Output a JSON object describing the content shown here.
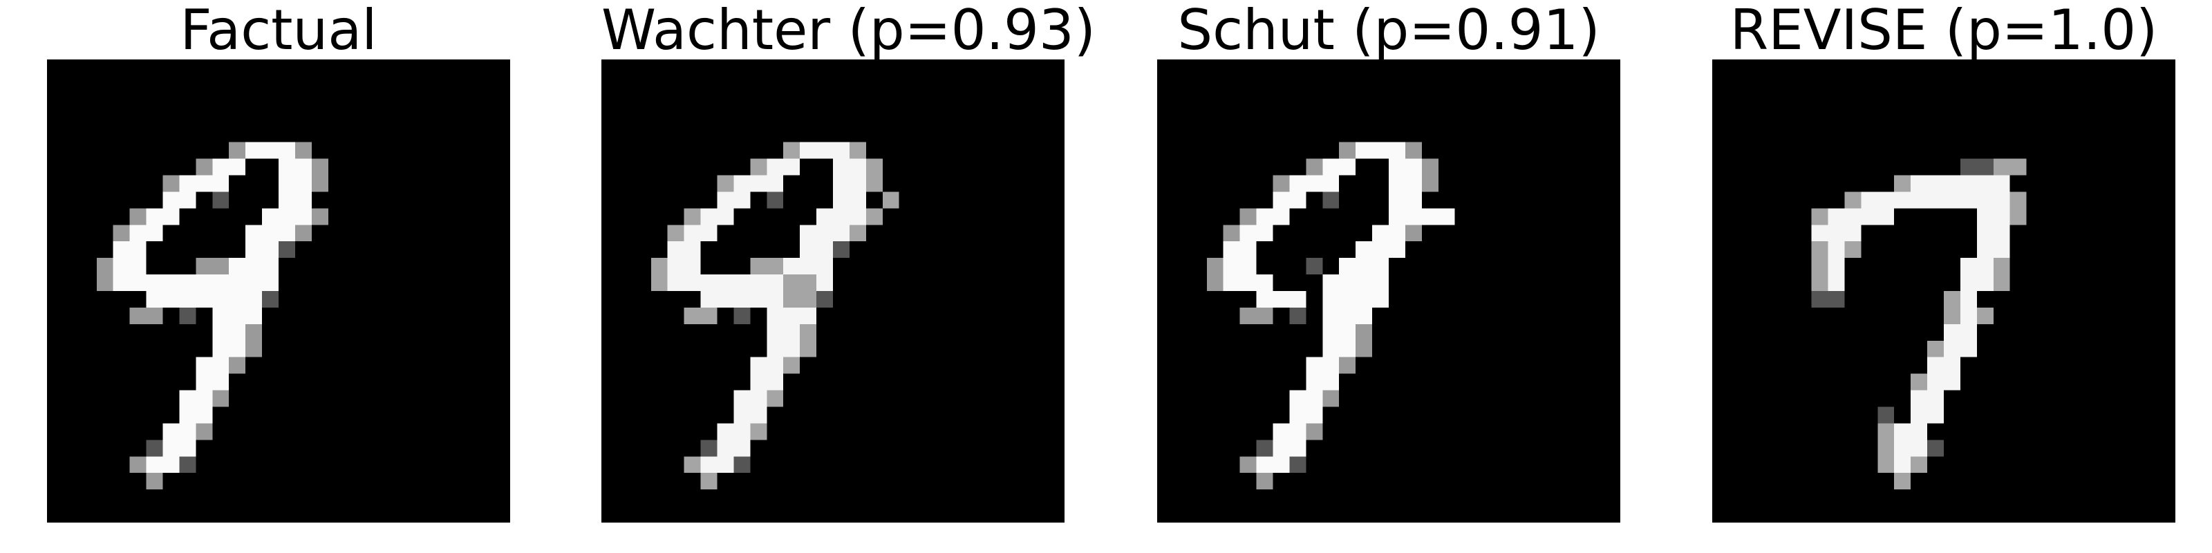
{
  "figure": {
    "panels": [
      {
        "id": "factual",
        "title": "Factual",
        "image": "mnist-digit-factual"
      },
      {
        "id": "wachter",
        "title": "Wachter (p=0.93)",
        "image": "mnist-digit-counterfactual-wachter"
      },
      {
        "id": "schut",
        "title": "Schut (p=0.91)",
        "image": "mnist-digit-counterfactual-schut"
      },
      {
        "id": "revise",
        "title": "REVISE (p=1.0)",
        "image": "mnist-digit-counterfactual-revise"
      }
    ]
  }
}
